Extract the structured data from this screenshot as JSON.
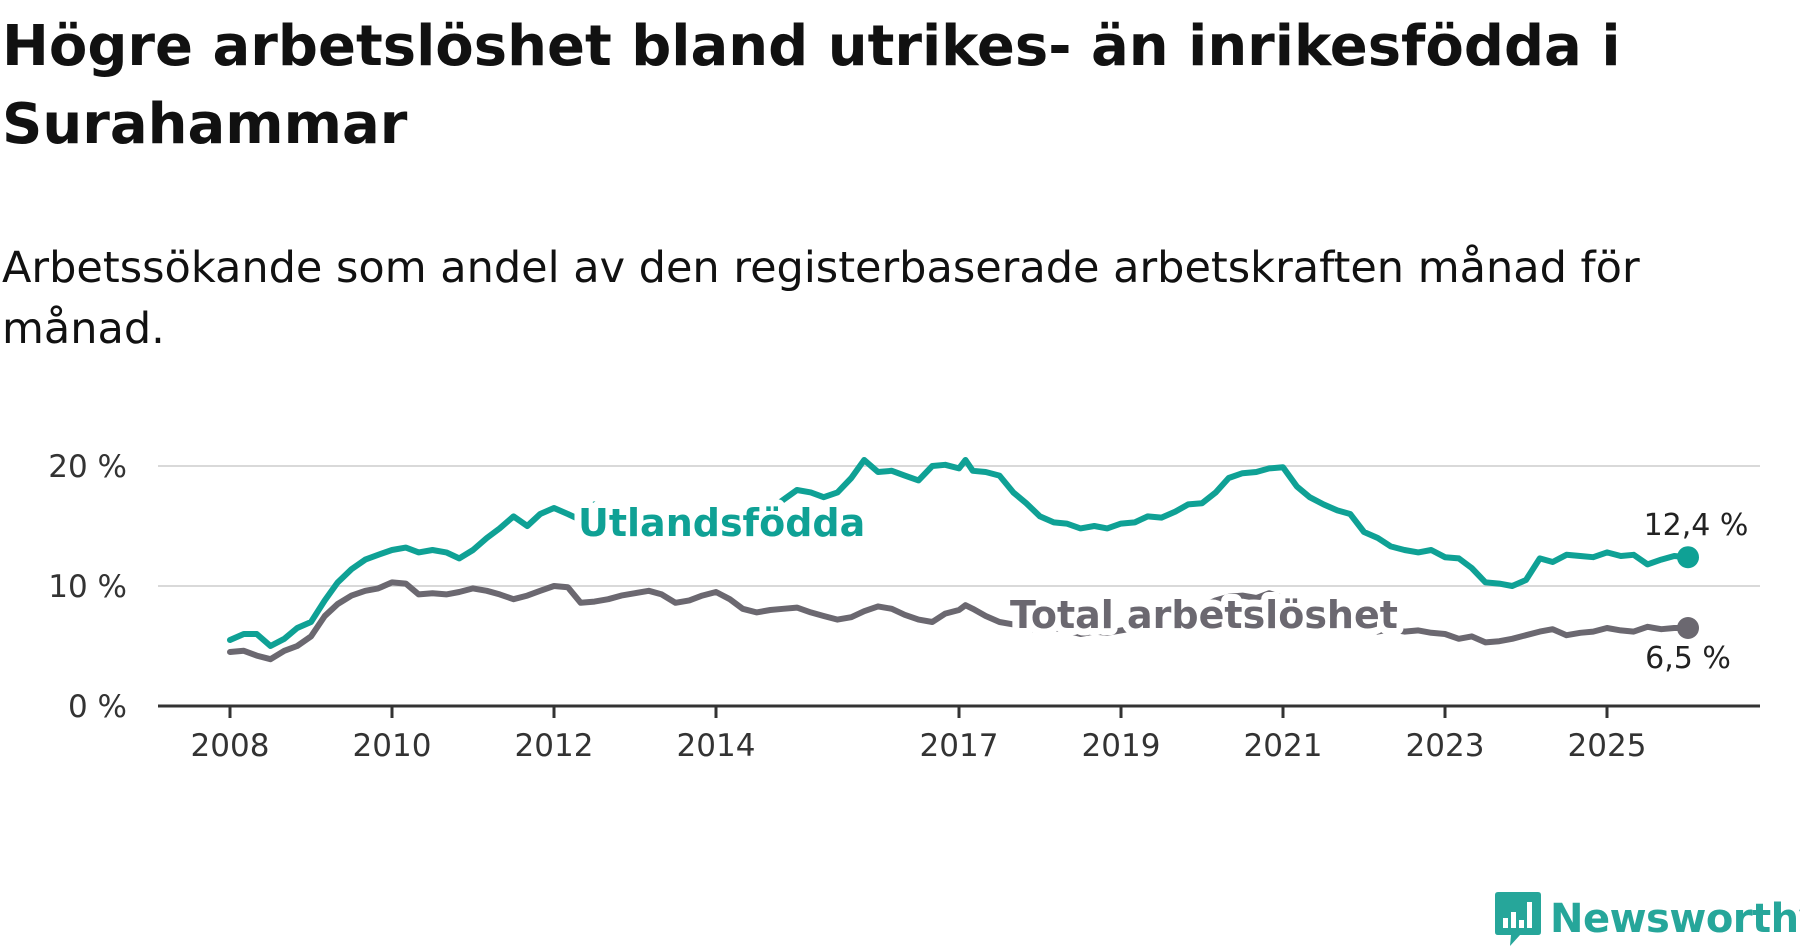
{
  "title": "Högre arbetslöshet bland utrikes- än inrikesfödda i Surahammar",
  "subtitle": "Arbetssökande som andel av den registerbaserade arbetskraften månad för månad.",
  "brand": {
    "name": "Newsworthy"
  },
  "colors": {
    "foreign": "#0fa195",
    "total": "#6b6870",
    "grid": "#d9d9d9",
    "axis": "#333333",
    "brand": "#26a69a"
  },
  "chart_data": {
    "type": "line",
    "title": "Högre arbetslöshet bland utrikes- än inrikesfödda i Surahammar",
    "xlabel": "",
    "ylabel": "",
    "xlim": [
      2008.0,
      2026.85
    ],
    "ylim": [
      0,
      20
    ],
    "y_ticks": [
      {
        "value": 0,
        "label": "0 %"
      },
      {
        "value": 10,
        "label": "10 %"
      },
      {
        "value": 20,
        "label": "20 %"
      }
    ],
    "x_ticks": [
      {
        "value": 2008,
        "label": "2008"
      },
      {
        "value": 2010,
        "label": "2010"
      },
      {
        "value": 2012,
        "label": "2012"
      },
      {
        "value": 2014,
        "label": "2014"
      },
      {
        "value": 2017,
        "label": "2017"
      },
      {
        "value": 2019,
        "label": "2019"
      },
      {
        "value": 2021,
        "label": "2021"
      },
      {
        "value": 2023,
        "label": "2023"
      },
      {
        "value": 2025,
        "label": "2025"
      }
    ],
    "grid": true,
    "series": [
      {
        "name": "Utlandsfödda",
        "color": "#0fa195",
        "end_label": "12,4 %",
        "points": [
          [
            2008.0,
            5.5
          ],
          [
            2008.17,
            6.0
          ],
          [
            2008.33,
            6.0
          ],
          [
            2008.5,
            5.0
          ],
          [
            2008.67,
            5.6
          ],
          [
            2008.83,
            6.5
          ],
          [
            2009.0,
            7.0
          ],
          [
            2009.17,
            8.8
          ],
          [
            2009.33,
            10.3
          ],
          [
            2009.5,
            11.4
          ],
          [
            2009.67,
            12.2
          ],
          [
            2009.83,
            12.6
          ],
          [
            2010.0,
            13.0
          ],
          [
            2010.17,
            13.2
          ],
          [
            2010.33,
            12.8
          ],
          [
            2010.5,
            13.0
          ],
          [
            2010.67,
            12.8
          ],
          [
            2010.83,
            12.3
          ],
          [
            2011.0,
            13.0
          ],
          [
            2011.17,
            14.0
          ],
          [
            2011.33,
            14.8
          ],
          [
            2011.5,
            15.8
          ],
          [
            2011.67,
            15.0
          ],
          [
            2011.83,
            16.0
          ],
          [
            2012.0,
            16.5
          ],
          [
            2012.17,
            16.0
          ],
          [
            2012.33,
            15.5
          ],
          [
            2012.5,
            16.8
          ],
          [
            2012.67,
            15.0
          ],
          [
            2012.83,
            15.2
          ],
          [
            2013.0,
            15.0
          ],
          [
            2013.5,
            14.0
          ],
          [
            2014.0,
            14.6
          ],
          [
            2014.5,
            15.5
          ],
          [
            2014.75,
            16.8
          ],
          [
            2015.0,
            18.0
          ],
          [
            2015.17,
            17.8
          ],
          [
            2015.33,
            17.4
          ],
          [
            2015.5,
            17.8
          ],
          [
            2015.67,
            19.0
          ],
          [
            2015.83,
            20.5
          ],
          [
            2016.0,
            19.5
          ],
          [
            2016.17,
            19.6
          ],
          [
            2016.33,
            19.2
          ],
          [
            2016.5,
            18.8
          ],
          [
            2016.67,
            20.0
          ],
          [
            2016.83,
            20.1
          ],
          [
            2017.0,
            19.8
          ],
          [
            2017.08,
            20.5
          ],
          [
            2017.17,
            19.6
          ],
          [
            2017.33,
            19.5
          ],
          [
            2017.5,
            19.2
          ],
          [
            2017.67,
            17.8
          ],
          [
            2017.83,
            16.9
          ],
          [
            2018.0,
            15.8
          ],
          [
            2018.17,
            15.3
          ],
          [
            2018.33,
            15.2
          ],
          [
            2018.5,
            14.8
          ],
          [
            2018.67,
            15.0
          ],
          [
            2018.83,
            14.8
          ],
          [
            2019.0,
            15.2
          ],
          [
            2019.17,
            15.3
          ],
          [
            2019.33,
            15.8
          ],
          [
            2019.5,
            15.7
          ],
          [
            2019.67,
            16.2
          ],
          [
            2019.83,
            16.8
          ],
          [
            2020.0,
            16.9
          ],
          [
            2020.17,
            17.8
          ],
          [
            2020.33,
            19.0
          ],
          [
            2020.5,
            19.4
          ],
          [
            2020.67,
            19.5
          ],
          [
            2020.83,
            19.8
          ],
          [
            2021.0,
            19.9
          ],
          [
            2021.17,
            18.3
          ],
          [
            2021.33,
            17.4
          ],
          [
            2021.5,
            16.8
          ],
          [
            2021.67,
            16.3
          ],
          [
            2021.83,
            16.0
          ],
          [
            2022.0,
            14.5
          ],
          [
            2022.17,
            14.0
          ],
          [
            2022.33,
            13.3
          ],
          [
            2022.5,
            13.0
          ],
          [
            2022.67,
            12.8
          ],
          [
            2022.83,
            13.0
          ],
          [
            2023.0,
            12.4
          ],
          [
            2023.17,
            12.3
          ],
          [
            2023.33,
            11.5
          ],
          [
            2023.5,
            10.3
          ],
          [
            2023.67,
            10.2
          ],
          [
            2023.83,
            10.0
          ],
          [
            2024.0,
            10.5
          ],
          [
            2024.17,
            12.3
          ],
          [
            2024.33,
            12.0
          ],
          [
            2024.5,
            12.6
          ],
          [
            2024.67,
            12.5
          ],
          [
            2024.83,
            12.4
          ],
          [
            2025.0,
            12.8
          ],
          [
            2025.17,
            12.5
          ],
          [
            2025.33,
            12.6
          ],
          [
            2025.5,
            11.8
          ],
          [
            2025.67,
            12.2
          ],
          [
            2025.83,
            12.5
          ],
          [
            2026.0,
            12.4
          ]
        ]
      },
      {
        "name": "Total arbetslöshet",
        "color": "#6b6870",
        "end_label": "6,5 %",
        "points": [
          [
            2008.0,
            4.5
          ],
          [
            2008.17,
            4.6
          ],
          [
            2008.33,
            4.2
          ],
          [
            2008.5,
            3.9
          ],
          [
            2008.67,
            4.6
          ],
          [
            2008.83,
            5.0
          ],
          [
            2009.0,
            5.8
          ],
          [
            2009.17,
            7.5
          ],
          [
            2009.33,
            8.5
          ],
          [
            2009.5,
            9.2
          ],
          [
            2009.67,
            9.6
          ],
          [
            2009.83,
            9.8
          ],
          [
            2010.0,
            10.3
          ],
          [
            2010.17,
            10.2
          ],
          [
            2010.33,
            9.3
          ],
          [
            2010.5,
            9.4
          ],
          [
            2010.67,
            9.3
          ],
          [
            2010.83,
            9.5
          ],
          [
            2011.0,
            9.8
          ],
          [
            2011.17,
            9.6
          ],
          [
            2011.33,
            9.3
          ],
          [
            2011.5,
            8.9
          ],
          [
            2011.67,
            9.2
          ],
          [
            2011.83,
            9.6
          ],
          [
            2012.0,
            10.0
          ],
          [
            2012.17,
            9.9
          ],
          [
            2012.33,
            8.6
          ],
          [
            2012.5,
            8.7
          ],
          [
            2012.67,
            8.9
          ],
          [
            2012.83,
            9.2
          ],
          [
            2013.0,
            9.4
          ],
          [
            2013.17,
            9.6
          ],
          [
            2013.33,
            9.3
          ],
          [
            2013.5,
            8.6
          ],
          [
            2013.67,
            8.8
          ],
          [
            2013.83,
            9.2
          ],
          [
            2014.0,
            9.5
          ],
          [
            2014.17,
            8.9
          ],
          [
            2014.33,
            8.1
          ],
          [
            2014.5,
            7.8
          ],
          [
            2014.67,
            8.0
          ],
          [
            2014.83,
            8.1
          ],
          [
            2015.0,
            8.2
          ],
          [
            2015.17,
            7.8
          ],
          [
            2015.33,
            7.5
          ],
          [
            2015.5,
            7.2
          ],
          [
            2015.67,
            7.4
          ],
          [
            2015.83,
            7.9
          ],
          [
            2016.0,
            8.3
          ],
          [
            2016.17,
            8.1
          ],
          [
            2016.33,
            7.6
          ],
          [
            2016.5,
            7.2
          ],
          [
            2016.67,
            7.0
          ],
          [
            2016.83,
            7.7
          ],
          [
            2017.0,
            8.0
          ],
          [
            2017.08,
            8.4
          ],
          [
            2017.17,
            8.1
          ],
          [
            2017.33,
            7.5
          ],
          [
            2017.5,
            7.0
          ],
          [
            2017.67,
            6.8
          ],
          [
            2017.83,
            6.5
          ],
          [
            2018.0,
            6.3
          ],
          [
            2018.17,
            6.5
          ],
          [
            2018.33,
            6.3
          ],
          [
            2018.5,
            6.0
          ],
          [
            2018.67,
            6.2
          ],
          [
            2018.83,
            6.1
          ],
          [
            2019.0,
            6.3
          ],
          [
            2019.17,
            6.5
          ],
          [
            2019.33,
            6.8
          ],
          [
            2019.5,
            7.2
          ],
          [
            2019.67,
            7.6
          ],
          [
            2019.83,
            8.0
          ],
          [
            2020.0,
            8.3
          ],
          [
            2020.17,
            8.8
          ],
          [
            2020.33,
            9.1
          ],
          [
            2020.5,
            9.2
          ],
          [
            2020.67,
            9.0
          ],
          [
            2020.83,
            9.4
          ],
          [
            2021.0,
            9.0
          ],
          [
            2021.17,
            8.3
          ],
          [
            2021.33,
            7.8
          ],
          [
            2021.5,
            7.4
          ],
          [
            2021.67,
            7.0
          ],
          [
            2021.83,
            6.7
          ],
          [
            2022.0,
            6.5
          ],
          [
            2022.17,
            6.2
          ],
          [
            2022.33,
            6.4
          ],
          [
            2022.5,
            6.2
          ],
          [
            2022.67,
            6.3
          ],
          [
            2022.83,
            6.1
          ],
          [
            2023.0,
            6.0
          ],
          [
            2023.17,
            5.6
          ],
          [
            2023.33,
            5.8
          ],
          [
            2023.5,
            5.3
          ],
          [
            2023.67,
            5.4
          ],
          [
            2023.83,
            5.6
          ],
          [
            2024.0,
            5.9
          ],
          [
            2024.17,
            6.2
          ],
          [
            2024.33,
            6.4
          ],
          [
            2024.5,
            5.9
          ],
          [
            2024.67,
            6.1
          ],
          [
            2024.83,
            6.2
          ],
          [
            2025.0,
            6.5
          ],
          [
            2025.17,
            6.3
          ],
          [
            2025.33,
            6.2
          ],
          [
            2025.5,
            6.6
          ],
          [
            2025.67,
            6.4
          ],
          [
            2025.83,
            6.5
          ],
          [
            2026.0,
            6.5
          ]
        ]
      }
    ]
  }
}
